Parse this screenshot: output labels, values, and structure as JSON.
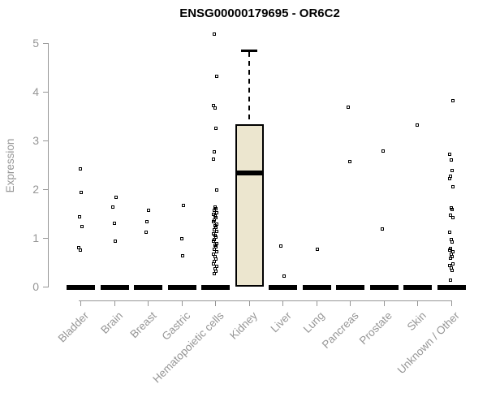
{
  "chart_data": {
    "type": "boxplot",
    "title": "ENSG00000179695 - OR6C2",
    "xlabel": "",
    "ylabel": "Expression",
    "ylim": [
      0,
      5
    ],
    "yticks": [
      0,
      1,
      2,
      3,
      4,
      5
    ],
    "grid": false,
    "legend": false,
    "box_fill_color": "#ECE6CF",
    "axis_color": "#969696",
    "point_color": "#000000",
    "categories": [
      "Bladder",
      "Brain",
      "Breast",
      "Gastric",
      "Hematopoietic cells",
      "Kidney",
      "Liver",
      "Lung",
      "Pancreas",
      "Prostate",
      "Skin",
      "Unknown / Other"
    ],
    "series": [
      {
        "category": "Bladder",
        "box": {
          "q1": 0,
          "median": 0,
          "q3": 0,
          "whisker_low": 0,
          "whisker_high": 0
        },
        "points": [
          2.41,
          1.94,
          1.44,
          1.24,
          0.8,
          0.75
        ]
      },
      {
        "category": "Brain",
        "box": {
          "q1": 0,
          "median": 0,
          "q3": 0,
          "whisker_low": 0,
          "whisker_high": 0
        },
        "points": [
          1.83,
          1.63,
          1.3,
          0.94
        ]
      },
      {
        "category": "Breast",
        "box": {
          "q1": 0,
          "median": 0,
          "q3": 0,
          "whisker_low": 0,
          "whisker_high": 0
        },
        "points": [
          1.56,
          1.33,
          1.11
        ]
      },
      {
        "category": "Gastric",
        "box": {
          "q1": 0,
          "median": 0,
          "q3": 0,
          "whisker_low": 0,
          "whisker_high": 0
        },
        "points": [
          1.66,
          0.99,
          0.63
        ]
      },
      {
        "category": "Hematopoietic cells",
        "box": {
          "q1": 0,
          "median": 0,
          "q3": 0,
          "whisker_low": 0,
          "whisker_high": 0
        },
        "points": [
          5.18,
          4.31,
          3.71,
          3.66,
          3.25,
          2.77,
          2.62,
          1.99,
          1.63,
          1.6,
          1.56,
          1.52,
          1.49,
          1.45,
          1.41,
          1.37,
          1.33,
          1.29,
          1.25,
          1.21,
          1.17,
          1.13,
          1.09,
          1.05,
          1.01,
          0.97,
          0.93,
          0.89,
          0.85,
          0.81,
          0.77,
          0.72,
          0.67,
          0.62,
          0.57,
          0.52,
          0.47,
          0.42,
          0.37,
          0.32,
          0.27
        ]
      },
      {
        "category": "Kidney",
        "box": {
          "q1": 0,
          "median": 2.33,
          "q3": 3.33,
          "whisker_low": 0,
          "whisker_high": 4.85
        },
        "points": []
      },
      {
        "category": "Liver",
        "box": {
          "q1": 0,
          "median": 0,
          "q3": 0,
          "whisker_low": 0,
          "whisker_high": 0
        },
        "points": [
          0.84,
          0.22
        ]
      },
      {
        "category": "Lung",
        "box": {
          "q1": 0,
          "median": 0,
          "q3": 0,
          "whisker_low": 0,
          "whisker_high": 0
        },
        "points": [
          0.76
        ]
      },
      {
        "category": "Pancreas",
        "box": {
          "q1": 0,
          "median": 0,
          "q3": 0,
          "whisker_low": 0,
          "whisker_high": 0
        },
        "points": [
          3.68,
          2.57
        ]
      },
      {
        "category": "Prostate",
        "box": {
          "q1": 0,
          "median": 0,
          "q3": 0,
          "whisker_low": 0,
          "whisker_high": 0
        },
        "points": [
          2.78,
          1.18
        ]
      },
      {
        "category": "Skin",
        "box": {
          "q1": 0,
          "median": 0,
          "q3": 0,
          "whisker_low": 0,
          "whisker_high": 0
        },
        "points": [
          3.31
        ]
      },
      {
        "category": "Unknown / Other",
        "box": {
          "q1": 0,
          "median": 0,
          "q3": 0,
          "whisker_low": 0,
          "whisker_high": 0
        },
        "points": [
          3.82,
          2.72,
          2.6,
          2.38,
          2.27,
          2.22,
          2.05,
          1.62,
          1.58,
          1.47,
          1.42,
          1.12,
          0.96,
          0.91,
          0.79,
          0.75,
          0.71,
          0.66,
          0.62,
          0.58,
          0.47,
          0.43,
          0.38,
          0.33,
          0.13
        ]
      }
    ]
  }
}
